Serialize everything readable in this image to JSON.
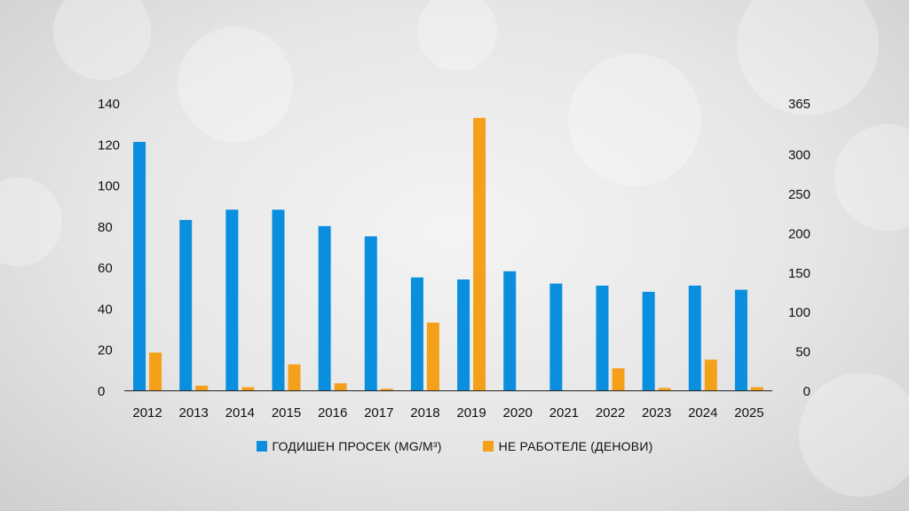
{
  "colors": {
    "series_1": "#0a8fde",
    "series_2": "#f5a01a",
    "axis": "#222222"
  },
  "chart_data": {
    "type": "bar",
    "categories": [
      "2012",
      "2013",
      "2014",
      "2015",
      "2016",
      "2017",
      "2018",
      "2019",
      "2020",
      "2021",
      "2022",
      "2023",
      "2024",
      "2025"
    ],
    "series": [
      {
        "name": "ГОДИШЕН ПРОСЕК (MG/M³)",
        "axis": "left",
        "values": [
          121,
          83,
          88,
          88,
          80,
          75,
          55,
          54,
          58,
          52,
          51,
          48,
          51,
          49
        ]
      },
      {
        "name": "НЕ РАБОТЕЛЕ (ДЕНОВИ)",
        "axis": "right",
        "values": [
          48,
          6,
          4,
          33,
          9,
          2,
          86,
          346,
          0,
          0,
          28,
          3,
          39,
          4
        ]
      }
    ],
    "left_axis": {
      "ylim": [
        0,
        140
      ],
      "ticks": [
        "0",
        "20",
        "40",
        "60",
        "80",
        "100",
        "120",
        "140"
      ]
    },
    "right_axis": {
      "ylim": [
        0,
        365
      ],
      "ticks": [
        "0",
        "50",
        "100",
        "150",
        "200",
        "250",
        "300",
        "365"
      ]
    },
    "legend": [
      "ГОДИШЕН ПРОСЕК (MG/M³)",
      "НЕ РАБОТЕЛЕ (ДЕНОВИ)"
    ],
    "legend_position": "bottom",
    "grid": false
  }
}
